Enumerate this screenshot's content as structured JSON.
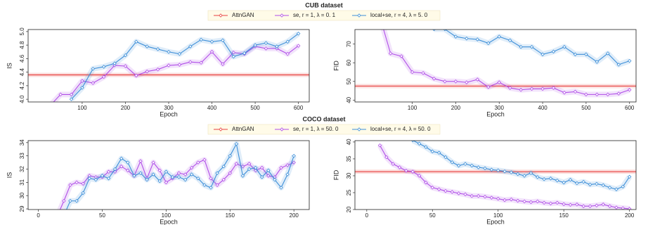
{
  "section_titles": [
    "CUB dataset",
    "COCO dataset"
  ],
  "chart_data": [
    {
      "type": "line",
      "xlabel": "Epoch",
      "ylabel": "IS",
      "x": [
        25,
        50,
        75,
        100,
        125,
        150,
        175,
        200,
        225,
        250,
        275,
        300,
        325,
        350,
        375,
        400,
        425,
        450,
        475,
        500,
        525,
        550,
        575,
        600
      ],
      "xlim": [
        -25,
        625
      ],
      "ylim": [
        3.96,
        5.03
      ],
      "xticks": [
        100,
        200,
        300,
        400,
        500,
        600
      ],
      "yticks": [
        {
          "value": 4,
          "label": "4.0"
        },
        4.2,
        4.4,
        4.6,
        4.8,
        {
          "value": 5,
          "label": "5.0"
        }
      ],
      "series": [
        {
          "name": "AttnGAN",
          "color": "#e8413f",
          "hline": 4.36
        },
        {
          "name": "se, r = 1, λ = 0. 1",
          "color": "#b04ee8",
          "values": [
            3.9,
            4.07,
            4.07,
            4.27,
            4.24,
            4.33,
            4.5,
            4.49,
            4.35,
            4.41,
            4.44,
            4.5,
            4.51,
            4.55,
            4.54,
            4.7,
            4.52,
            4.69,
            4.67,
            4.78,
            4.75,
            4.75,
            4.67,
            4.79
          ]
        },
        {
          "name": "local+se, r = 4, λ = 5. 0",
          "color": "#3d8fd8",
          "values": [
            null,
            null,
            4.0,
            4.17,
            4.45,
            4.48,
            4.53,
            4.65,
            4.85,
            4.78,
            4.74,
            4.7,
            4.67,
            4.78,
            4.88,
            4.85,
            4.87,
            4.63,
            4.68,
            4.8,
            4.83,
            4.78,
            4.85,
            4.97
          ]
        }
      ]
    },
    {
      "type": "line",
      "xlabel": "Epoch",
      "ylabel": "FID",
      "x": [
        25,
        50,
        75,
        100,
        125,
        150,
        175,
        200,
        225,
        250,
        275,
        300,
        325,
        350,
        375,
        400,
        425,
        450,
        475,
        500,
        525,
        550,
        575,
        600
      ],
      "xlim": [
        -32,
        615
      ],
      "ylim": [
        39,
        77.8
      ],
      "xticks": [
        100,
        200,
        300,
        400,
        500,
        600
      ],
      "yticks": [
        40,
        50,
        60,
        70
      ],
      "series": [
        {
          "color": "#e8413f",
          "hline": 47.5
        },
        {
          "color": "#b04ee8",
          "values": [
            85,
            65,
            63.5,
            55,
            54.5,
            51.5,
            50,
            50,
            49.5,
            51,
            47,
            49.5,
            46.5,
            45.5,
            46,
            46,
            46.5,
            44,
            44.5,
            43,
            43,
            43,
            43.5,
            45.5
          ]
        },
        {
          "color": "#3d8fd8",
          "values": [
            null,
            null,
            null,
            null,
            null,
            78,
            78,
            74,
            73,
            72.5,
            70.5,
            74,
            72,
            68.5,
            68.5,
            64.5,
            66,
            68.5,
            64.5,
            64.5,
            60.5,
            65,
            59,
            61
          ]
        }
      ]
    },
    {
      "type": "line",
      "xlabel": "Epoch",
      "ylabel": "IS",
      "x": [
        15,
        20,
        25,
        30,
        35,
        40,
        45,
        50,
        55,
        60,
        65,
        70,
        75,
        80,
        85,
        90,
        95,
        100,
        105,
        110,
        115,
        120,
        125,
        130,
        135,
        140,
        145,
        150,
        155,
        160,
        165,
        170,
        175,
        180,
        185,
        190,
        195,
        200
      ],
      "xlim": [
        -8,
        212
      ],
      "ylim": [
        28.95,
        34.15
      ],
      "xticks": [
        0,
        50,
        100,
        150,
        200
      ],
      "yticks": [
        29,
        30,
        31,
        32,
        33,
        34
      ],
      "series": [
        {
          "name": "AttnGAN",
          "color": "#e8413f"
        },
        {
          "name": "se, r = 1, λ = 50. 0",
          "color": "#b04ee8",
          "values": [
            28.5,
            29.6,
            30.8,
            31,
            30.9,
            31.5,
            31.4,
            31.4,
            31.8,
            31.8,
            32.2,
            31.9,
            31.5,
            32.6,
            31.3,
            32.5,
            31.9,
            31,
            31.3,
            31.7,
            31.6,
            32.1,
            32.5,
            32.7,
            31.3,
            30.8,
            31.2,
            31.7,
            32.4,
            32.2,
            32.4,
            31.9,
            32.1,
            31.5,
            31.4,
            32.1,
            32.3,
            32.5
          ]
        },
        {
          "name": "local+se, r = 4, λ = 50. 0",
          "color": "#3d8fd8",
          "values": [
            28,
            28.5,
            29.6,
            29.6,
            30.2,
            31.3,
            31.2,
            31.5,
            31.3,
            32,
            32.8,
            32.5,
            31.5,
            31.7,
            31.2,
            31.6,
            31.1,
            31.8,
            31.4,
            31.4,
            31.2,
            31.6,
            31.3,
            30.8,
            30.6,
            31.7,
            32.2,
            33,
            33.9,
            31.5,
            32,
            32.1,
            31.4,
            31.9,
            31.2,
            30.6,
            31.6,
            33
          ]
        }
      ]
    },
    {
      "type": "line",
      "xlabel": "Epoch",
      "ylabel": "FID",
      "x": [
        10,
        15,
        20,
        25,
        30,
        35,
        40,
        45,
        50,
        55,
        60,
        65,
        70,
        75,
        80,
        85,
        90,
        95,
        100,
        105,
        110,
        115,
        120,
        125,
        130,
        135,
        140,
        145,
        150,
        155,
        160,
        165,
        170,
        175,
        180,
        185,
        190,
        195,
        200
      ],
      "xlim": [
        -9,
        205
      ],
      "ylim": [
        20,
        40.4
      ],
      "xticks": [
        0,
        50,
        100,
        150,
        200
      ],
      "yticks": [
        20,
        25,
        30,
        35,
        40
      ],
      "series": [
        {
          "color": "#e8413f",
          "hline": 31.2
        },
        {
          "color": "#b04ee8",
          "values": [
            39,
            35.5,
            33.5,
            32.5,
            31.5,
            31.2,
            30,
            28,
            26.5,
            26,
            25.5,
            25.2,
            24.8,
            24.5,
            24,
            24,
            23.8,
            23.5,
            23.2,
            22.8,
            23,
            22.6,
            22.4,
            22.2,
            22.4,
            22,
            21.8,
            22,
            21.6,
            21.4,
            21.5,
            21,
            21,
            21.2,
            21.5,
            21,
            20.6,
            20.4,
            20.2
          ]
        },
        {
          "color": "#3d8fd8",
          "values": [
            null,
            null,
            null,
            null,
            null,
            40.5,
            39.5,
            38.5,
            37.2,
            36.8,
            35.5,
            34,
            33,
            33.5,
            33,
            32.5,
            32.2,
            31.8,
            31.6,
            31.3,
            31,
            30.5,
            30,
            30.8,
            29.6,
            29,
            29.2,
            28.6,
            28,
            28.8,
            27.8,
            28.2,
            27.4,
            27.6,
            27.2,
            26.5,
            26,
            26.8,
            29.7
          ]
        }
      ]
    }
  ]
}
